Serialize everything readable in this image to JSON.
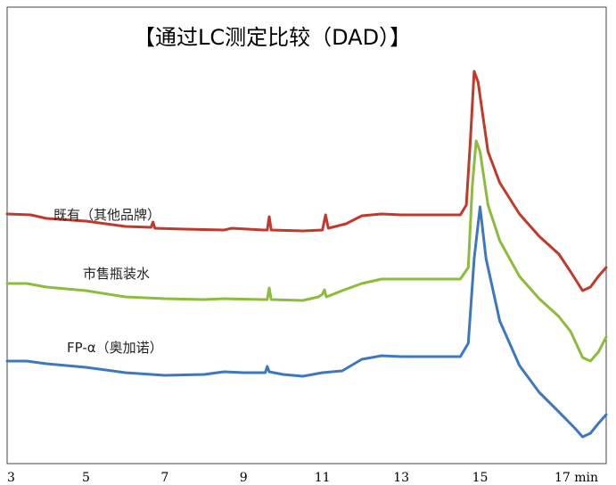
{
  "chart_data": {
    "type": "line",
    "title": "【通过LC测定比较（DAD）】",
    "x_ticks": [
      "3",
      "5",
      "7",
      "9",
      "11",
      "13",
      "15",
      "17 min"
    ],
    "x_tick_values": [
      3,
      5,
      7,
      9,
      11,
      13,
      15,
      17
    ],
    "xlim": [
      3,
      18.2
    ],
    "grid": false,
    "series": [
      {
        "name": "既有（其他品牌）",
        "color": "#c0392b",
        "points": [
          [
            3.0,
            240
          ],
          [
            3.6,
            241
          ],
          [
            4.0,
            245
          ],
          [
            5.0,
            248
          ],
          [
            6.0,
            254
          ],
          [
            6.65,
            255
          ],
          [
            6.7,
            249
          ],
          [
            6.75,
            256
          ],
          [
            7.5,
            257
          ],
          [
            8.5,
            258
          ],
          [
            8.7,
            256
          ],
          [
            9.5,
            258
          ],
          [
            9.6,
            258
          ],
          [
            9.65,
            243
          ],
          [
            9.7,
            258
          ],
          [
            10.5,
            259
          ],
          [
            11.0,
            258
          ],
          [
            11.08,
            241
          ],
          [
            11.15,
            256
          ],
          [
            11.6,
            251
          ],
          [
            12.0,
            242
          ],
          [
            12.5,
            240
          ],
          [
            13.0,
            241
          ],
          [
            14.5,
            241
          ],
          [
            14.65,
            230
          ],
          [
            14.75,
            160
          ],
          [
            14.85,
            80
          ],
          [
            14.95,
            92
          ],
          [
            15.2,
            170
          ],
          [
            15.5,
            205
          ],
          [
            16.0,
            240
          ],
          [
            16.5,
            265
          ],
          [
            17.0,
            285
          ],
          [
            17.3,
            305
          ],
          [
            17.6,
            326
          ],
          [
            17.8,
            322
          ],
          [
            18.0,
            310
          ],
          [
            18.2,
            300
          ]
        ]
      },
      {
        "name": "市售瓶装水",
        "color": "#8dbb3c",
        "points": [
          [
            3.0,
            318
          ],
          [
            3.5,
            318
          ],
          [
            4.0,
            322
          ],
          [
            5.0,
            326
          ],
          [
            6.0,
            333
          ],
          [
            7.0,
            335
          ],
          [
            8.0,
            336
          ],
          [
            8.5,
            335
          ],
          [
            9.5,
            336
          ],
          [
            9.6,
            336
          ],
          [
            9.65,
            323
          ],
          [
            9.7,
            336
          ],
          [
            10.5,
            337
          ],
          [
            10.9,
            333
          ],
          [
            11.0,
            330
          ],
          [
            11.05,
            325
          ],
          [
            11.1,
            333
          ],
          [
            11.5,
            326
          ],
          [
            12.0,
            318
          ],
          [
            12.5,
            313
          ],
          [
            13.0,
            313
          ],
          [
            14.5,
            313
          ],
          [
            14.7,
            300
          ],
          [
            14.8,
            210
          ],
          [
            14.9,
            158
          ],
          [
            15.0,
            170
          ],
          [
            15.2,
            230
          ],
          [
            15.5,
            270
          ],
          [
            16.0,
            310
          ],
          [
            16.5,
            335
          ],
          [
            17.0,
            355
          ],
          [
            17.3,
            372
          ],
          [
            17.6,
            401
          ],
          [
            17.8,
            405
          ],
          [
            18.0,
            395
          ],
          [
            18.2,
            378
          ]
        ]
      },
      {
        "name": "FP-α（奥加诺）",
        "color": "#3d78bf",
        "points": [
          [
            3.0,
            405
          ],
          [
            3.5,
            405
          ],
          [
            4.0,
            408
          ],
          [
            5.0,
            412
          ],
          [
            6.0,
            418
          ],
          [
            7.0,
            421
          ],
          [
            8.0,
            420
          ],
          [
            8.5,
            417
          ],
          [
            9.0,
            418
          ],
          [
            9.55,
            418
          ],
          [
            9.6,
            411
          ],
          [
            9.65,
            417
          ],
          [
            10.0,
            420
          ],
          [
            10.5,
            422
          ],
          [
            11.0,
            418
          ],
          [
            11.5,
            416
          ],
          [
            12.0,
            403
          ],
          [
            12.5,
            399
          ],
          [
            13.0,
            400
          ],
          [
            14.5,
            400
          ],
          [
            14.7,
            385
          ],
          [
            14.85,
            290
          ],
          [
            15.0,
            232
          ],
          [
            15.15,
            290
          ],
          [
            15.5,
            360
          ],
          [
            16.0,
            410
          ],
          [
            16.5,
            440
          ],
          [
            17.0,
            462
          ],
          [
            17.4,
            480
          ],
          [
            17.6,
            490
          ],
          [
            17.8,
            486
          ],
          [
            18.0,
            475
          ],
          [
            18.2,
            465
          ]
        ]
      }
    ]
  }
}
